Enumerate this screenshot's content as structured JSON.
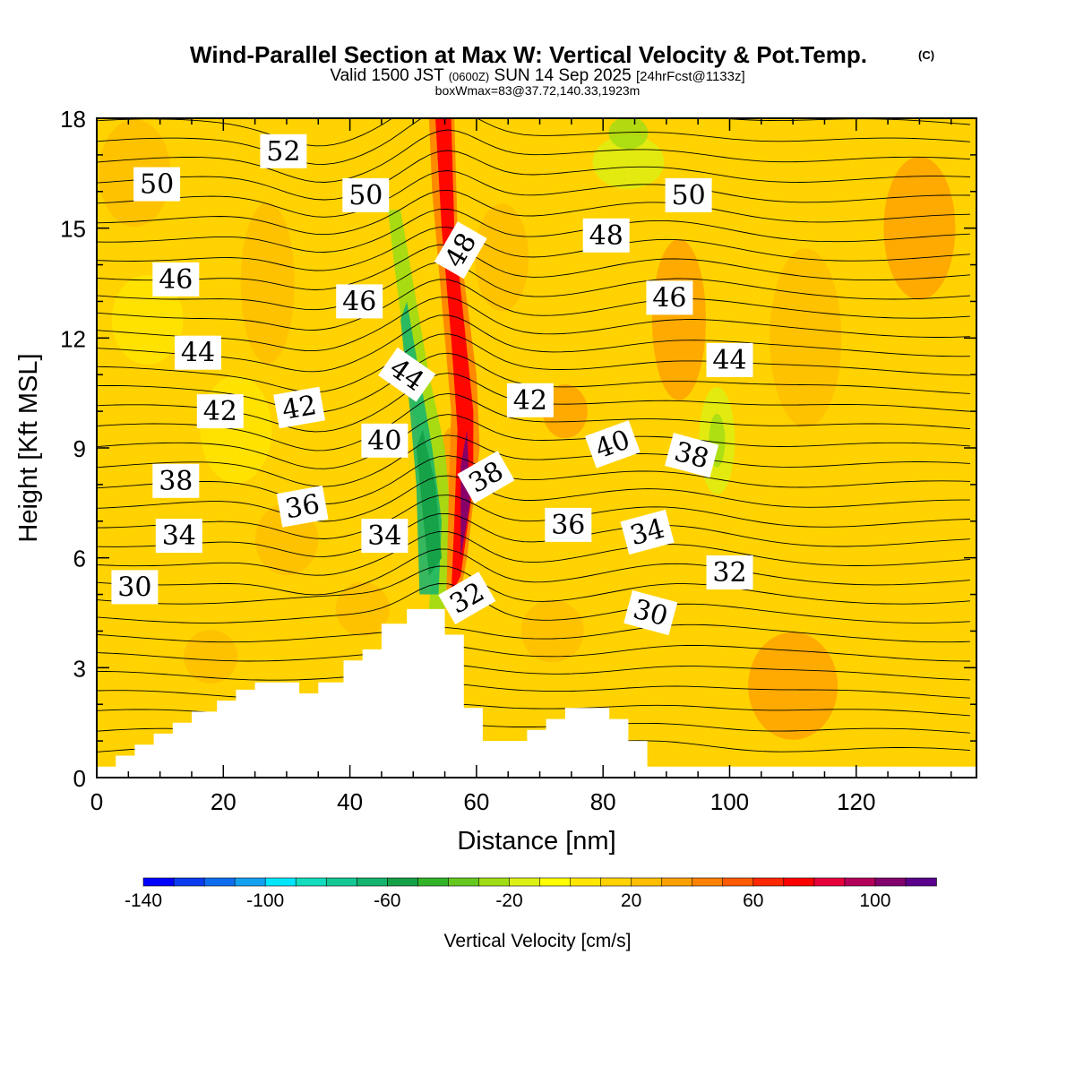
{
  "title": {
    "main": "Wind-Parallel Section at Max W: Vertical Velocity & Pot.Temp.",
    "copyright": "(C)",
    "valid_prefix": "Valid 1500 JST",
    "valid_utc": "(0600Z)",
    "valid_date": "SUN 14 Sep 2025",
    "forecast": "[24hrFcst@1133z]",
    "box_info": "boxWmax=83@37.72,140.33,1923m"
  },
  "chart_data": {
    "type": "heatmap",
    "description_fields": "filled vertical velocity with potential temperature contour lines",
    "xlabel": "Distance [nm]",
    "ylabel": "Height [Kft MSL]",
    "xlim": [
      0,
      139
    ],
    "ylim": [
      0,
      18
    ],
    "x_ticks": [
      0,
      20,
      40,
      60,
      80,
      100,
      120
    ],
    "y_ticks": [
      0,
      3,
      6,
      9,
      12,
      15,
      18
    ],
    "colorbar": {
      "title": "Vertical Velocity [cm/s]",
      "min": -140,
      "max": 110,
      "step": 10,
      "tick_values": [
        -140,
        -100,
        -60,
        -20,
        20,
        60,
        100
      ],
      "colors": [
        "#0000ff",
        "#0a3cf0",
        "#0f6ef0",
        "#14a0f0",
        "#00e6ff",
        "#14dcbe",
        "#14c896",
        "#14b46e",
        "#14a046",
        "#32b428",
        "#64c81e",
        "#a0dc14",
        "#dcf014",
        "#ffff00",
        "#ffe600",
        "#ffd200",
        "#ffbe00",
        "#ffa000",
        "#ff8200",
        "#ff5a00",
        "#ff2800",
        "#ff0000",
        "#e6003c",
        "#b4005a",
        "#82006e",
        "#5a008c"
      ]
    },
    "contour_labels": [
      {
        "text": "52",
        "x": 29.5,
        "y": 17.1,
        "angle": 0
      },
      {
        "text": "50",
        "x": 9.5,
        "y": 16.2,
        "angle": 0
      },
      {
        "text": "50",
        "x": 42.5,
        "y": 15.9,
        "angle": 0
      },
      {
        "text": "50",
        "x": 93.5,
        "y": 15.9,
        "angle": 0
      },
      {
        "text": "48",
        "x": 57.5,
        "y": 14.4,
        "angle": -60
      },
      {
        "text": "48",
        "x": 80.5,
        "y": 14.8,
        "angle": 0
      },
      {
        "text": "46",
        "x": 12.5,
        "y": 13.6,
        "angle": 0
      },
      {
        "text": "46",
        "x": 41.5,
        "y": 13.0,
        "angle": 0
      },
      {
        "text": "46",
        "x": 90.5,
        "y": 13.1,
        "angle": 0
      },
      {
        "text": "44",
        "x": 16.0,
        "y": 11.6,
        "angle": 0
      },
      {
        "text": "44",
        "x": 49.0,
        "y": 11.0,
        "angle": 35
      },
      {
        "text": "44",
        "x": 100.0,
        "y": 11.4,
        "angle": 0
      },
      {
        "text": "42",
        "x": 19.5,
        "y": 10.0,
        "angle": 0
      },
      {
        "text": "42",
        "x": 32.0,
        "y": 10.1,
        "angle": -10
      },
      {
        "text": "42",
        "x": 68.5,
        "y": 10.3,
        "angle": 0
      },
      {
        "text": "40",
        "x": 45.5,
        "y": 9.2,
        "angle": 0
      },
      {
        "text": "40",
        "x": 81.5,
        "y": 9.1,
        "angle": -20
      },
      {
        "text": "38",
        "x": 12.5,
        "y": 8.1,
        "angle": 0
      },
      {
        "text": "38",
        "x": 61.5,
        "y": 8.2,
        "angle": -30
      },
      {
        "text": "38",
        "x": 94.0,
        "y": 8.8,
        "angle": 15
      },
      {
        "text": "36",
        "x": 32.5,
        "y": 7.4,
        "angle": -10
      },
      {
        "text": "36",
        "x": 74.5,
        "y": 6.9,
        "angle": 0
      },
      {
        "text": "34",
        "x": 13.0,
        "y": 6.6,
        "angle": 0
      },
      {
        "text": "34",
        "x": 45.5,
        "y": 6.6,
        "angle": 0
      },
      {
        "text": "34",
        "x": 87.0,
        "y": 6.7,
        "angle": -15
      },
      {
        "text": "32",
        "x": 58.5,
        "y": 4.9,
        "angle": -30
      },
      {
        "text": "32",
        "x": 100.0,
        "y": 5.6,
        "angle": 0
      },
      {
        "text": "30",
        "x": 6.0,
        "y": 5.2,
        "angle": 0
      },
      {
        "text": "30",
        "x": 87.5,
        "y": 4.5,
        "angle": 15
      }
    ],
    "terrain_profile": [
      [
        0,
        0.3
      ],
      [
        3,
        0.3
      ],
      [
        3,
        0.6
      ],
      [
        6,
        0.6
      ],
      [
        6,
        0.9
      ],
      [
        9,
        0.9
      ],
      [
        9,
        1.2
      ],
      [
        12,
        1.2
      ],
      [
        12,
        1.5
      ],
      [
        15,
        1.5
      ],
      [
        15,
        1.8
      ],
      [
        19,
        1.8
      ],
      [
        19,
        2.1
      ],
      [
        22,
        2.1
      ],
      [
        22,
        2.4
      ],
      [
        25,
        2.4
      ],
      [
        25,
        2.6
      ],
      [
        32,
        2.6
      ],
      [
        32,
        2.3
      ],
      [
        35,
        2.3
      ],
      [
        35,
        2.6
      ],
      [
        39,
        2.6
      ],
      [
        39,
        3.2
      ],
      [
        42,
        3.2
      ],
      [
        42,
        3.5
      ],
      [
        45,
        3.5
      ],
      [
        45,
        4.2
      ],
      [
        49,
        4.2
      ],
      [
        49,
        4.6
      ],
      [
        55,
        4.6
      ],
      [
        55,
        3.9
      ],
      [
        58,
        3.9
      ],
      [
        58,
        1.9
      ],
      [
        61,
        1.9
      ],
      [
        61,
        1.0
      ],
      [
        68,
        1.0
      ],
      [
        68,
        1.3
      ],
      [
        71,
        1.3
      ],
      [
        71,
        1.6
      ],
      [
        74,
        1.6
      ],
      [
        74,
        1.9
      ],
      [
        81,
        1.9
      ],
      [
        81,
        1.6
      ],
      [
        84,
        1.6
      ],
      [
        84,
        1.0
      ],
      [
        87,
        1.0
      ],
      [
        87,
        0.3
      ],
      [
        139,
        0.3
      ]
    ]
  }
}
